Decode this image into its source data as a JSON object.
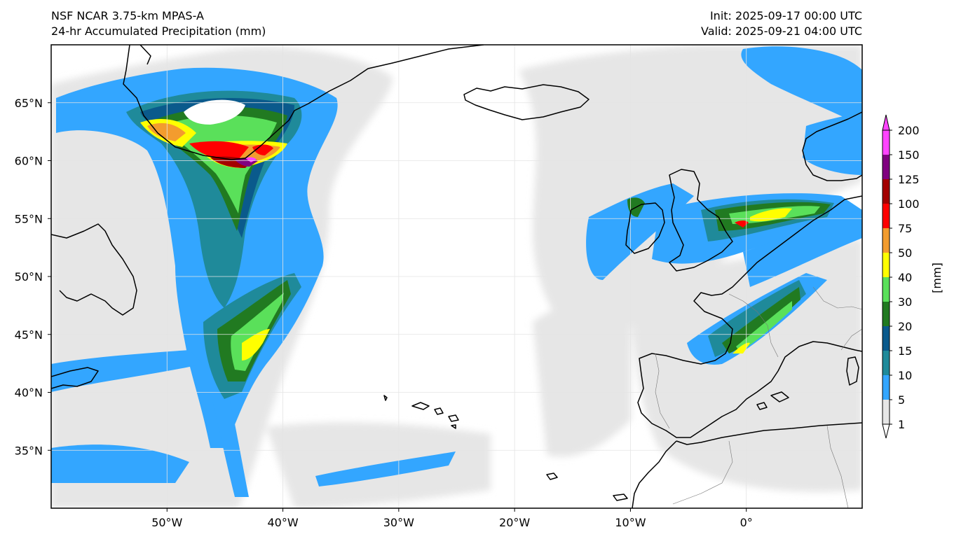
{
  "header": {
    "title_left_line1": "NSF NCAR 3.75-km MPAS-A",
    "title_left_line2": "24-hr Accumulated Precipitation (mm)",
    "title_right_line1": "Init: 2025-09-17 00:00 UTC",
    "title_right_line2": "Valid: 2025-09-21 04:00 UTC"
  },
  "map": {
    "lon_range": [
      -60,
      10
    ],
    "lat_range": [
      30,
      70
    ],
    "lon_ticks": [
      {
        "value": -50,
        "label": "50°W"
      },
      {
        "value": -40,
        "label": "40°W"
      },
      {
        "value": -30,
        "label": "30°W"
      },
      {
        "value": -20,
        "label": "20°W"
      },
      {
        "value": -10,
        "label": "10°W"
      },
      {
        "value": 0,
        "label": "0°"
      }
    ],
    "lat_ticks": [
      {
        "value": 35,
        "label": "35°N"
      },
      {
        "value": 40,
        "label": "40°N"
      },
      {
        "value": 45,
        "label": "45°N"
      },
      {
        "value": 50,
        "label": "50°N"
      },
      {
        "value": 55,
        "label": "55°N"
      },
      {
        "value": 60,
        "label": "60°N"
      },
      {
        "value": 65,
        "label": "65°N"
      }
    ]
  },
  "colorbar": {
    "unit_label": "[mm]",
    "levels": [
      "1",
      "5",
      "10",
      "15",
      "20",
      "30",
      "40",
      "50",
      "75",
      "100",
      "125",
      "150",
      "200"
    ],
    "colors": [
      "#e6e6e6",
      "#33a6ff",
      "#1f8a9a",
      "#0a5a8c",
      "#217a21",
      "#5ae05a",
      "#ffff00",
      "#f39c2e",
      "#ff0000",
      "#a30000",
      "#800080",
      "#ff44ff"
    ]
  }
}
